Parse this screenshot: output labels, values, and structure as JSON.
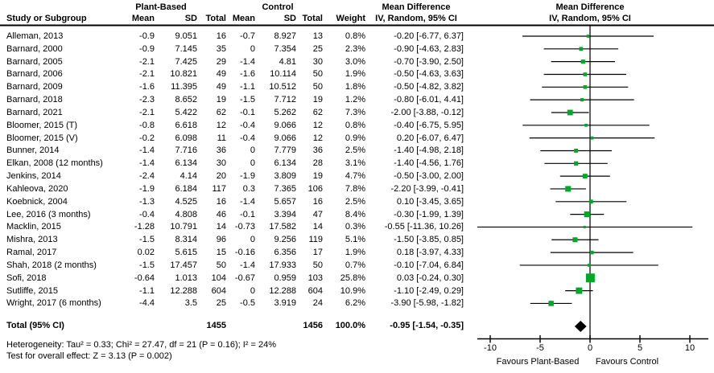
{
  "header": {
    "study": "Study or Subgroup",
    "group_plant": "Plant-Based",
    "group_control": "Control",
    "mean": "Mean",
    "sd": "SD",
    "total": "Total",
    "weight": "Weight",
    "md_title": "Mean Difference",
    "md_sub": "IV, Random, 95% CI"
  },
  "footer": {
    "heterogeneity": "Heterogeneity: Tau² = 0.33; Chi² = 27.47, df = 21 (P = 0.16); I² = 24%",
    "overall": "Test for overall effect: Z = 3.13 (P = 0.002)"
  },
  "chart_data": {
    "type": "forest",
    "title": "Mean Difference  IV, Random, 95% CI",
    "marker_color": "#00a828",
    "diamond_color": "#000000",
    "axis": {
      "ticks": [
        -10,
        -5,
        0,
        5,
        10
      ],
      "min": -11.4,
      "max": 11.8,
      "favours_left": "Favours Plant-Based",
      "favours_right": "Favours Control"
    },
    "studies": [
      {
        "name": "Alleman, 2013",
        "mean1": "-0.9",
        "sd1": "9.051",
        "total1": "16",
        "mean2": "-0.7",
        "sd2": "8.927",
        "total2": "13",
        "weight": "0.8%",
        "md_label": "-0.20 [-6.77, 6.37]",
        "md": -0.2,
        "lo": -6.77,
        "hi": 6.37
      },
      {
        "name": "Barnard, 2000",
        "mean1": "-0.9",
        "sd1": "7.145",
        "total1": "35",
        "mean2": "0",
        "sd2": "7.354",
        "total2": "25",
        "weight": "2.3%",
        "md_label": "-0.90 [-4.63, 2.83]",
        "md": -0.9,
        "lo": -4.63,
        "hi": 2.83
      },
      {
        "name": "Barnard, 2005",
        "mean1": "-2.1",
        "sd1": "7.425",
        "total1": "29",
        "mean2": "-1.4",
        "sd2": "4.81",
        "total2": "30",
        "weight": "3.0%",
        "md_label": "-0.70 [-3.90, 2.50]",
        "md": -0.7,
        "lo": -3.9,
        "hi": 2.5
      },
      {
        "name": "Barnard, 2006",
        "mean1": "-2.1",
        "sd1": "10.821",
        "total1": "49",
        "mean2": "-1.6",
        "sd2": "10.114",
        "total2": "50",
        "weight": "1.9%",
        "md_label": "-0.50 [-4.63, 3.63]",
        "md": -0.5,
        "lo": -4.63,
        "hi": 3.63
      },
      {
        "name": "Barnard, 2009",
        "mean1": "-1.6",
        "sd1": "11.395",
        "total1": "49",
        "mean2": "-1.1",
        "sd2": "10.512",
        "total2": "50",
        "weight": "1.8%",
        "md_label": "-0.50 [-4.82, 3.82]",
        "md": -0.5,
        "lo": -4.82,
        "hi": 3.82
      },
      {
        "name": "Barnard, 2018",
        "mean1": "-2.3",
        "sd1": "8.652",
        "total1": "19",
        "mean2": "-1.5",
        "sd2": "7.712",
        "total2": "19",
        "weight": "1.2%",
        "md_label": "-0.80 [-6.01, 4.41]",
        "md": -0.8,
        "lo": -6.01,
        "hi": 4.41
      },
      {
        "name": "Barnard, 2021",
        "mean1": "-2.1",
        "sd1": "5.422",
        "total1": "62",
        "mean2": "-0.1",
        "sd2": "5.262",
        "total2": "62",
        "weight": "7.3%",
        "md_label": "-2.00 [-3.88, -0.12]",
        "md": -2.0,
        "lo": -3.88,
        "hi": -0.12
      },
      {
        "name": "Bloomer, 2015 (T)",
        "mean1": "-0.8",
        "sd1": "6.618",
        "total1": "12",
        "mean2": "-0.4",
        "sd2": "9.066",
        "total2": "12",
        "weight": "0.8%",
        "md_label": "-0.40 [-6.75, 5.95]",
        "md": -0.4,
        "lo": -6.75,
        "hi": 5.95
      },
      {
        "name": "Bloomer, 2015 (V)",
        "mean1": "-0.2",
        "sd1": "6.098",
        "total1": "11",
        "mean2": "-0.4",
        "sd2": "9.066",
        "total2": "12",
        "weight": "0.9%",
        "md_label": "0.20 [-6.07, 6.47]",
        "md": 0.2,
        "lo": -6.07,
        "hi": 6.47
      },
      {
        "name": "Bunner, 2014",
        "mean1": "-1.4",
        "sd1": "7.716",
        "total1": "36",
        "mean2": "0",
        "sd2": "7.779",
        "total2": "36",
        "weight": "2.5%",
        "md_label": "-1.40 [-4.98, 2.18]",
        "md": -1.4,
        "lo": -4.98,
        "hi": 2.18
      },
      {
        "name": "Elkan, 2008 (12 months)",
        "mean1": "-1.4",
        "sd1": "6.134",
        "total1": "30",
        "mean2": "0",
        "sd2": "6.134",
        "total2": "28",
        "weight": "3.1%",
        "md_label": "-1.40 [-4.56, 1.76]",
        "md": -1.4,
        "lo": -4.56,
        "hi": 1.76
      },
      {
        "name": "Jenkins, 2014",
        "mean1": "-2.4",
        "sd1": "4.14",
        "total1": "20",
        "mean2": "-1.9",
        "sd2": "3.809",
        "total2": "19",
        "weight": "4.7%",
        "md_label": "-0.50 [-3.00, 2.00]",
        "md": -0.5,
        "lo": -3.0,
        "hi": 2.0
      },
      {
        "name": "Kahleova, 2020",
        "mean1": "-1.9",
        "sd1": "6.184",
        "total1": "117",
        "mean2": "0.3",
        "sd2": "7.365",
        "total2": "106",
        "weight": "7.8%",
        "md_label": "-2.20 [-3.99, -0.41]",
        "md": -2.2,
        "lo": -3.99,
        "hi": -0.41
      },
      {
        "name": "Koebnick, 2004",
        "mean1": "-1.3",
        "sd1": "4.525",
        "total1": "16",
        "mean2": "-1.4",
        "sd2": "5.657",
        "total2": "16",
        "weight": "2.5%",
        "md_label": "0.10 [-3.45, 3.65]",
        "md": 0.1,
        "lo": -3.45,
        "hi": 3.65
      },
      {
        "name": "Lee, 2016 (3 months)",
        "mean1": "-0.4",
        "sd1": "4.808",
        "total1": "46",
        "mean2": "-0.1",
        "sd2": "3.394",
        "total2": "47",
        "weight": "8.4%",
        "md_label": "-0.30 [-1.99, 1.39]",
        "md": -0.3,
        "lo": -1.99,
        "hi": 1.39
      },
      {
        "name": "Macklin, 2015",
        "mean1": "-1.28",
        "sd1": "10.791",
        "total1": "14",
        "mean2": "-0.73",
        "sd2": "17.582",
        "total2": "14",
        "weight": "0.3%",
        "md_label": "-0.55 [-11.36, 10.26]",
        "md": -0.55,
        "lo": -11.36,
        "hi": 10.26
      },
      {
        "name": "Mishra, 2013",
        "mean1": "-1.5",
        "sd1": "8.314",
        "total1": "96",
        "mean2": "0",
        "sd2": "9.256",
        "total2": "119",
        "weight": "5.1%",
        "md_label": "-1.50 [-3.85, 0.85]",
        "md": -1.5,
        "lo": -3.85,
        "hi": 0.85
      },
      {
        "name": "Ramal, 2017",
        "mean1": "0.02",
        "sd1": "5.615",
        "total1": "15",
        "mean2": "-0.16",
        "sd2": "6.356",
        "total2": "17",
        "weight": "1.9%",
        "md_label": "0.18 [-3.97, 4.33]",
        "md": 0.18,
        "lo": -3.97,
        "hi": 4.33
      },
      {
        "name": "Shah, 2018 (2 months)",
        "mean1": "-1.5",
        "sd1": "17.457",
        "total1": "50",
        "mean2": "-1.4",
        "sd2": "17.933",
        "total2": "50",
        "weight": "0.7%",
        "md_label": "-0.10 [-7.04, 6.84]",
        "md": -0.1,
        "lo": -7.04,
        "hi": 6.84
      },
      {
        "name": "Sofi, 2018",
        "mean1": "-0.64",
        "sd1": "1.013",
        "total1": "104",
        "mean2": "-0.67",
        "sd2": "0.959",
        "total2": "103",
        "weight": "25.8%",
        "md_label": "0.03 [-0.24, 0.30]",
        "md": 0.03,
        "lo": -0.24,
        "hi": 0.3
      },
      {
        "name": "Sutliffe, 2015",
        "mean1": "-1.1",
        "sd1": "12.288",
        "total1": "604",
        "mean2": "0",
        "sd2": "12.288",
        "total2": "604",
        "weight": "10.9%",
        "md_label": "-1.10 [-2.49, 0.29]",
        "md": -1.1,
        "lo": -2.49,
        "hi": 0.29
      },
      {
        "name": "Wright, 2017 (6 months)",
        "mean1": "-4.4",
        "sd1": "3.5",
        "total1": "25",
        "mean2": "-0.5",
        "sd2": "3.919",
        "total2": "24",
        "weight": "6.2%",
        "md_label": "-3.90 [-5.98, -1.82]",
        "md": -3.9,
        "lo": -5.98,
        "hi": -1.82
      }
    ],
    "total": {
      "label": "Total (95% CI)",
      "total1": "1455",
      "total2": "1456",
      "weight": "100.0%",
      "md_label": "-0.95 [-1.54, -0.35]",
      "md": -0.95,
      "lo": -1.54,
      "hi": -0.35
    }
  }
}
